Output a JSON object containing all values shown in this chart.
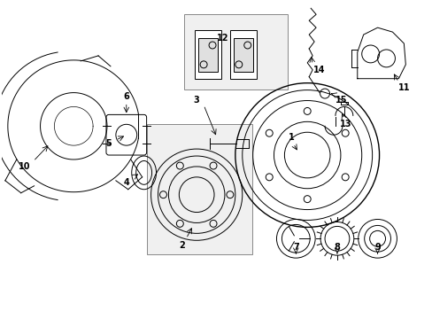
{
  "background_color": "#ffffff",
  "line_color": "#000000",
  "box_fill": "#f0f0f0",
  "box_edge": "#888888",
  "figsize": [
    4.89,
    3.6
  ],
  "dpi": 100
}
